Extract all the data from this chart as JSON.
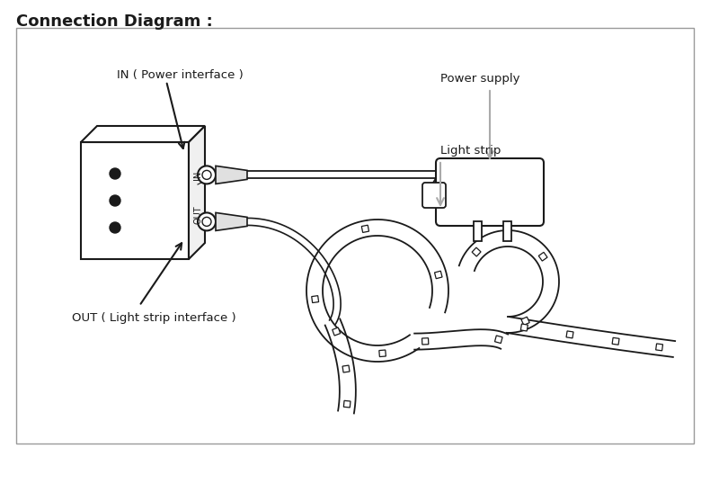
{
  "title": "Connection Diagram :",
  "title_fontsize": 13,
  "title_fontweight": "bold",
  "background_color": "#ffffff",
  "line_color": "#1a1a1a",
  "label_in": "IN ( Power interface )",
  "label_out": "OUT ( Light strip interface )",
  "label_power": "Power supply",
  "label_light": "Light strip",
  "text_color": "#1a1a1a",
  "arrow_gray": "#aaaaaa"
}
